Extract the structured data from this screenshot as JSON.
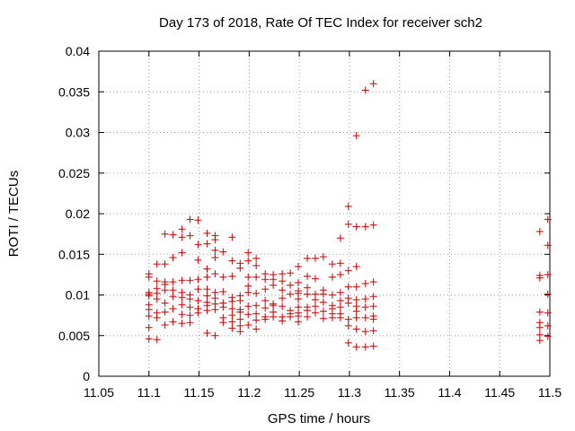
{
  "chart_data": {
    "type": "scatter",
    "title": "Day 173 of 2018, Rate Of TEC Index for receiver sch2",
    "xlabel": "GPS time / hours",
    "ylabel": "ROTI / TECUs",
    "xlim": [
      11.05,
      11.5
    ],
    "ylim": [
      0,
      0.04
    ],
    "x_ticks": [
      11.05,
      11.1,
      11.15,
      11.2,
      11.25,
      11.3,
      11.35,
      11.4,
      11.45,
      11.5
    ],
    "x_tick_labels": [
      "11.05",
      "11.1",
      "11.15",
      "11.2",
      "11.25",
      "11.3",
      "11.35",
      "11.4",
      "11.45",
      "11.5"
    ],
    "y_ticks": [
      0,
      0.005,
      0.01,
      0.015,
      0.02,
      0.025,
      0.03,
      0.035,
      0.04
    ],
    "y_tick_labels": [
      "0",
      "0.005",
      "0.01",
      "0.015",
      "0.02",
      "0.025",
      "0.03",
      "0.035",
      "0.04"
    ],
    "grid": true,
    "marker": "+",
    "marker_color": "#cc0000",
    "points": [
      [
        11.1,
        0.0126
      ],
      [
        11.1,
        0.0122
      ],
      [
        11.1,
        0.0103
      ],
      [
        11.1,
        0.0101
      ],
      [
        11.1,
        0.0099
      ],
      [
        11.1,
        0.0088
      ],
      [
        11.1,
        0.0082
      ],
      [
        11.1,
        0.0074
      ],
      [
        11.1,
        0.006
      ],
      [
        11.1,
        0.0046
      ],
      [
        11.108,
        0.0138
      ],
      [
        11.108,
        0.0117
      ],
      [
        11.108,
        0.0108
      ],
      [
        11.108,
        0.0102
      ],
      [
        11.108,
        0.0095
      ],
      [
        11.108,
        0.0078
      ],
      [
        11.108,
        0.0072
      ],
      [
        11.108,
        0.0045
      ],
      [
        11.116,
        0.0175
      ],
      [
        11.116,
        0.0138
      ],
      [
        11.116,
        0.0116
      ],
      [
        11.116,
        0.0113
      ],
      [
        11.116,
        0.0106
      ],
      [
        11.116,
        0.009
      ],
      [
        11.116,
        0.0079
      ],
      [
        11.116,
        0.0063
      ],
      [
        11.124,
        0.0174
      ],
      [
        11.124,
        0.0146
      ],
      [
        11.124,
        0.0116
      ],
      [
        11.124,
        0.0106
      ],
      [
        11.124,
        0.0098
      ],
      [
        11.124,
        0.0083
      ],
      [
        11.124,
        0.0067
      ],
      [
        11.133,
        0.0181
      ],
      [
        11.133,
        0.0171
      ],
      [
        11.133,
        0.0152
      ],
      [
        11.133,
        0.0118
      ],
      [
        11.133,
        0.0103
      ],
      [
        11.133,
        0.0097
      ],
      [
        11.133,
        0.0088
      ],
      [
        11.133,
        0.0076
      ],
      [
        11.133,
        0.0065
      ],
      [
        11.141,
        0.0193
      ],
      [
        11.141,
        0.0173
      ],
      [
        11.141,
        0.0118
      ],
      [
        11.141,
        0.01
      ],
      [
        11.141,
        0.0095
      ],
      [
        11.141,
        0.0085
      ],
      [
        11.141,
        0.0075
      ],
      [
        11.141,
        0.0066
      ],
      [
        11.149,
        0.0192
      ],
      [
        11.149,
        0.0162
      ],
      [
        11.149,
        0.0143
      ],
      [
        11.149,
        0.0119
      ],
      [
        11.149,
        0.0107
      ],
      [
        11.149,
        0.0093
      ],
      [
        11.149,
        0.0083
      ],
      [
        11.149,
        0.0078
      ],
      [
        11.158,
        0.0176
      ],
      [
        11.158,
        0.0163
      ],
      [
        11.158,
        0.0132
      ],
      [
        11.158,
        0.0122
      ],
      [
        11.158,
        0.0107
      ],
      [
        11.158,
        0.0099
      ],
      [
        11.158,
        0.0091
      ],
      [
        11.158,
        0.0087
      ],
      [
        11.158,
        0.0081
      ],
      [
        11.158,
        0.0053
      ],
      [
        11.166,
        0.0173
      ],
      [
        11.166,
        0.0168
      ],
      [
        11.166,
        0.0155
      ],
      [
        11.166,
        0.0146
      ],
      [
        11.166,
        0.0126
      ],
      [
        11.166,
        0.0103
      ],
      [
        11.166,
        0.0096
      ],
      [
        11.166,
        0.0089
      ],
      [
        11.166,
        0.0082
      ],
      [
        11.166,
        0.005
      ],
      [
        11.174,
        0.0153
      ],
      [
        11.174,
        0.0122
      ],
      [
        11.174,
        0.0104
      ],
      [
        11.174,
        0.009
      ],
      [
        11.174,
        0.0085
      ],
      [
        11.174,
        0.0072
      ],
      [
        11.174,
        0.0066
      ],
      [
        11.183,
        0.0171
      ],
      [
        11.183,
        0.0142
      ],
      [
        11.183,
        0.0123
      ],
      [
        11.183,
        0.0097
      ],
      [
        11.183,
        0.0092
      ],
      [
        11.183,
        0.0083
      ],
      [
        11.183,
        0.0075
      ],
      [
        11.183,
        0.0067
      ],
      [
        11.183,
        0.0059
      ],
      [
        11.191,
        0.0139
      ],
      [
        11.191,
        0.0133
      ],
      [
        11.191,
        0.0099
      ],
      [
        11.191,
        0.0093
      ],
      [
        11.191,
        0.0082
      ],
      [
        11.191,
        0.0079
      ],
      [
        11.191,
        0.007
      ],
      [
        11.191,
        0.0062
      ],
      [
        11.191,
        0.0055
      ],
      [
        11.199,
        0.0152
      ],
      [
        11.199,
        0.0142
      ],
      [
        11.199,
        0.0122
      ],
      [
        11.199,
        0.0111
      ],
      [
        11.199,
        0.0103
      ],
      [
        11.199,
        0.0086
      ],
      [
        11.199,
        0.0076
      ],
      [
        11.199,
        0.0063
      ],
      [
        11.207,
        0.0145
      ],
      [
        11.207,
        0.0136
      ],
      [
        11.207,
        0.0122
      ],
      [
        11.207,
        0.0102
      ],
      [
        11.207,
        0.0087
      ],
      [
        11.207,
        0.0077
      ],
      [
        11.207,
        0.0069
      ],
      [
        11.207,
        0.0058
      ],
      [
        11.216,
        0.0126
      ],
      [
        11.216,
        0.0119
      ],
      [
        11.216,
        0.0107
      ],
      [
        11.216,
        0.0093
      ],
      [
        11.216,
        0.0084
      ],
      [
        11.216,
        0.0073
      ],
      [
        11.216,
        0.007
      ],
      [
        11.224,
        0.0125
      ],
      [
        11.224,
        0.0119
      ],
      [
        11.224,
        0.0112
      ],
      [
        11.224,
        0.0089
      ],
      [
        11.224,
        0.0087
      ],
      [
        11.224,
        0.0079
      ],
      [
        11.224,
        0.0073
      ],
      [
        11.233,
        0.0126
      ],
      [
        11.233,
        0.0117
      ],
      [
        11.233,
        0.0106
      ],
      [
        11.233,
        0.0096
      ],
      [
        11.233,
        0.0086
      ],
      [
        11.233,
        0.0073
      ],
      [
        11.233,
        0.0068
      ],
      [
        11.241,
        0.0127
      ],
      [
        11.241,
        0.0112
      ],
      [
        11.241,
        0.0101
      ],
      [
        11.241,
        0.0081
      ],
      [
        11.241,
        0.0077
      ],
      [
        11.241,
        0.0073
      ],
      [
        11.249,
        0.0135
      ],
      [
        11.249,
        0.0115
      ],
      [
        11.249,
        0.0105
      ],
      [
        11.249,
        0.0102
      ],
      [
        11.249,
        0.0095
      ],
      [
        11.249,
        0.0085
      ],
      [
        11.249,
        0.0078
      ],
      [
        11.249,
        0.0074
      ],
      [
        11.249,
        0.0067
      ],
      [
        11.258,
        0.0145
      ],
      [
        11.258,
        0.0123
      ],
      [
        11.258,
        0.0109
      ],
      [
        11.258,
        0.0101
      ],
      [
        11.258,
        0.0085
      ],
      [
        11.258,
        0.0081
      ],
      [
        11.258,
        0.0073
      ],
      [
        11.266,
        0.0145
      ],
      [
        11.266,
        0.012
      ],
      [
        11.266,
        0.0101
      ],
      [
        11.266,
        0.0094
      ],
      [
        11.266,
        0.0086
      ],
      [
        11.266,
        0.0078
      ],
      [
        11.274,
        0.0147
      ],
      [
        11.274,
        0.0106
      ],
      [
        11.274,
        0.0101
      ],
      [
        11.274,
        0.0091
      ],
      [
        11.274,
        0.008
      ],
      [
        11.274,
        0.0071
      ],
      [
        11.283,
        0.0138
      ],
      [
        11.283,
        0.0122
      ],
      [
        11.283,
        0.01
      ],
      [
        11.283,
        0.0087
      ],
      [
        11.283,
        0.0083
      ],
      [
        11.283,
        0.0077
      ],
      [
        11.283,
        0.0072
      ],
      [
        11.291,
        0.017
      ],
      [
        11.291,
        0.0139
      ],
      [
        11.291,
        0.0125
      ],
      [
        11.291,
        0.0103
      ],
      [
        11.291,
        0.0093
      ],
      [
        11.291,
        0.0085
      ],
      [
        11.291,
        0.0077
      ],
      [
        11.291,
        0.0072
      ],
      [
        11.299,
        0.0209
      ],
      [
        11.299,
        0.0187
      ],
      [
        11.299,
        0.013
      ],
      [
        11.299,
        0.011
      ],
      [
        11.299,
        0.0096
      ],
      [
        11.299,
        0.009
      ],
      [
        11.299,
        0.007
      ],
      [
        11.299,
        0.0062
      ],
      [
        11.299,
        0.0041
      ],
      [
        11.307,
        0.0296
      ],
      [
        11.307,
        0.0184
      ],
      [
        11.307,
        0.0135
      ],
      [
        11.307,
        0.011
      ],
      [
        11.307,
        0.0094
      ],
      [
        11.307,
        0.0086
      ],
      [
        11.307,
        0.008
      ],
      [
        11.307,
        0.0072
      ],
      [
        11.307,
        0.0058
      ],
      [
        11.307,
        0.0036
      ],
      [
        11.316,
        0.0352
      ],
      [
        11.316,
        0.0184
      ],
      [
        11.316,
        0.0114
      ],
      [
        11.316,
        0.0095
      ],
      [
        11.316,
        0.0085
      ],
      [
        11.316,
        0.0072
      ],
      [
        11.316,
        0.0055
      ],
      [
        11.316,
        0.0036
      ],
      [
        11.324,
        0.036
      ],
      [
        11.324,
        0.0186
      ],
      [
        11.324,
        0.0116
      ],
      [
        11.324,
        0.0098
      ],
      [
        11.324,
        0.0086
      ],
      [
        11.324,
        0.0074
      ],
      [
        11.324,
        0.007
      ],
      [
        11.324,
        0.0056
      ],
      [
        11.324,
        0.0037
      ],
      [
        11.49,
        0.0178
      ],
      [
        11.49,
        0.0124
      ],
      [
        11.49,
        0.0121
      ],
      [
        11.49,
        0.0079
      ],
      [
        11.49,
        0.0066
      ],
      [
        11.49,
        0.006
      ],
      [
        11.49,
        0.0051
      ],
      [
        11.49,
        0.0044
      ],
      [
        11.498,
        0.0193
      ],
      [
        11.498,
        0.0161
      ],
      [
        11.498,
        0.0125
      ],
      [
        11.498,
        0.0101
      ],
      [
        11.498,
        0.0078
      ],
      [
        11.498,
        0.0062
      ],
      [
        11.498,
        0.0049
      ]
    ]
  }
}
